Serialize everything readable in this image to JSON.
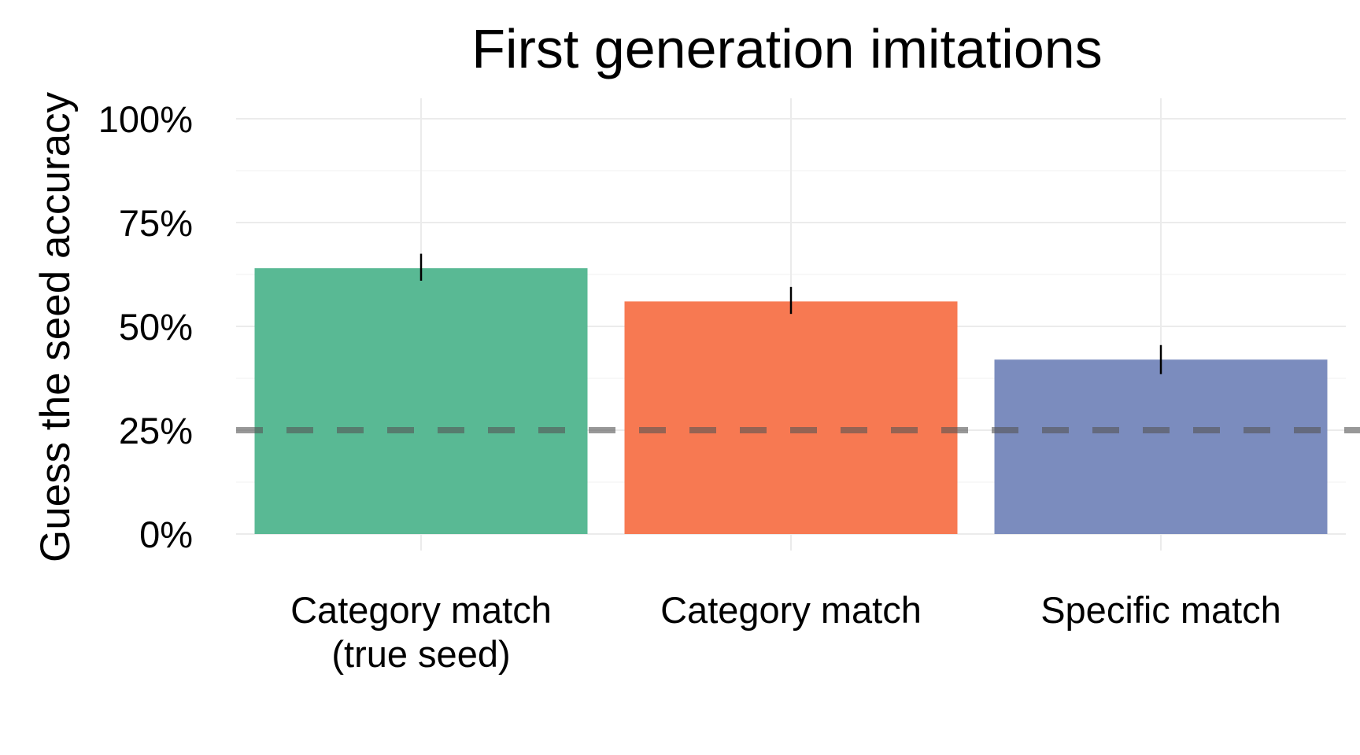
{
  "chart_data": {
    "type": "bar",
    "title": "First generation imitations",
    "xlabel": "",
    "ylabel": "Guess the seed accuracy",
    "ylim": [
      0,
      1
    ],
    "yticks": [
      0,
      0.25,
      0.5,
      0.75,
      1.0
    ],
    "ytick_labels": [
      "0%",
      "25%",
      "50%",
      "75%",
      "100%"
    ],
    "categories": [
      [
        "Category match",
        "(true seed)"
      ],
      [
        "Category match"
      ],
      [
        "Specific match"
      ]
    ],
    "values": [
      0.64,
      0.56,
      0.42
    ],
    "error_bars": [
      [
        0.61,
        0.675
      ],
      [
        0.53,
        0.595
      ],
      [
        0.385,
        0.455
      ]
    ],
    "colors": [
      "#59b994",
      "#f77952",
      "#7b8cbe"
    ],
    "reference_line": {
      "y": 0.25,
      "style": "dashed",
      "color": "#555555"
    },
    "grid": true,
    "legend": "none"
  }
}
